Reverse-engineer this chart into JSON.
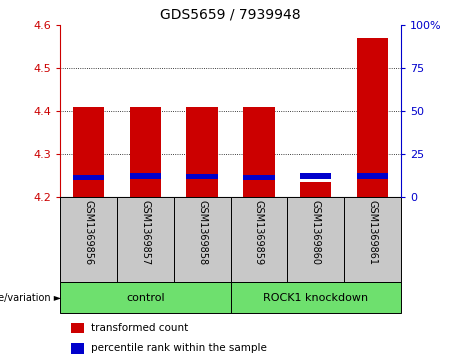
{
  "title": "GDS5659 / 7939948",
  "samples": [
    "GSM1369856",
    "GSM1369857",
    "GSM1369858",
    "GSM1369859",
    "GSM1369860",
    "GSM1369861"
  ],
  "red_values": [
    4.41,
    4.41,
    4.41,
    4.41,
    4.235,
    4.57
  ],
  "blue_values": [
    4.245,
    4.248,
    4.247,
    4.245,
    4.248,
    4.248
  ],
  "y_min": 4.2,
  "y_max": 4.6,
  "y_ticks": [
    4.2,
    4.3,
    4.4,
    4.5,
    4.6
  ],
  "right_y_labels": [
    "0",
    "25",
    "50",
    "75",
    "100%"
  ],
  "right_y_percents": [
    0,
    25,
    50,
    75,
    100
  ],
  "group_defs": [
    {
      "label": "control",
      "start": 0,
      "end": 2
    },
    {
      "label": "ROCK1 knockdown",
      "start": 3,
      "end": 5
    }
  ],
  "group_label_prefix": "genotype/variation ►",
  "legend_items": [
    {
      "color": "#CC0000",
      "label": "transformed count"
    },
    {
      "color": "#0000CC",
      "label": "percentile rank within the sample"
    }
  ],
  "bar_width": 0.55,
  "red_color": "#CC0000",
  "blue_color": "#0000CC",
  "gray_box_color": "#C8C8C8",
  "green_box_color": "#6EE06E",
  "title_fontsize": 10,
  "tick_fontsize": 8,
  "sample_fontsize": 7,
  "group_fontsize": 8,
  "legend_fontsize": 7.5
}
